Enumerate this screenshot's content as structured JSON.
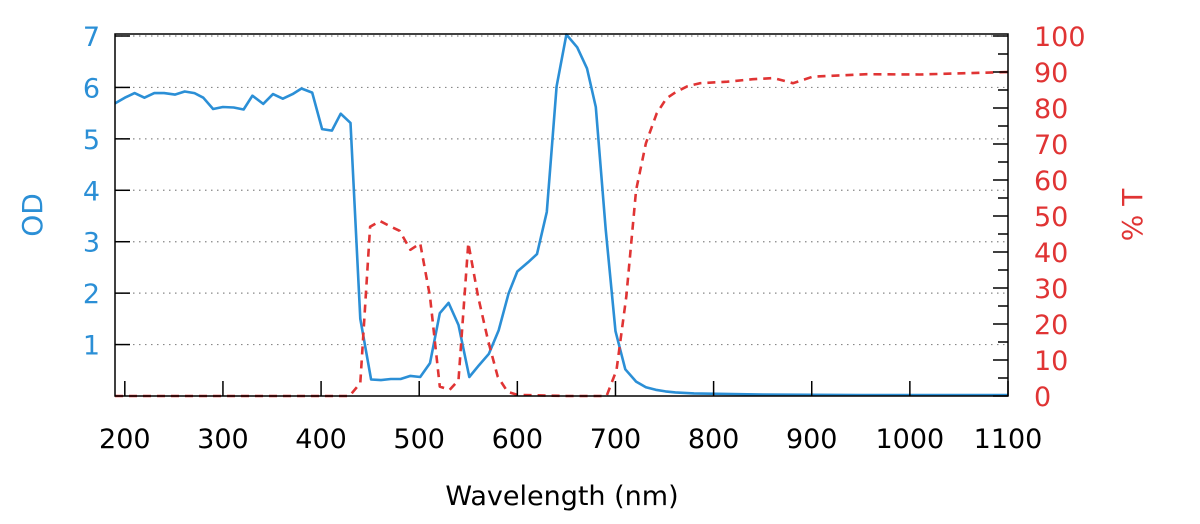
{
  "chart_data": {
    "type": "line",
    "title": "",
    "xlabel": "Wavelength (nm)",
    "ylabel": "OD",
    "y2label": "% T",
    "xlim": [
      190,
      1100
    ],
    "ylim": [
      0,
      7
    ],
    "y2lim": [
      0,
      100
    ],
    "xticks": [
      200,
      300,
      400,
      500,
      600,
      700,
      800,
      900,
      1000,
      1100
    ],
    "yticks": [
      1,
      2,
      3,
      4,
      5,
      6,
      7
    ],
    "y2ticks": [
      0,
      10,
      20,
      30,
      40,
      50,
      60,
      70,
      80,
      90,
      100
    ],
    "grid": "horizontal dotted at OD ticks",
    "colors": {
      "od": "#2b8fd6",
      "transmission": "#e03434",
      "axis": "#000000",
      "grid": "#888888"
    },
    "series": [
      {
        "axis": "left",
        "style": "solid",
        "x": [
          190,
          200,
          210,
          220,
          230,
          240,
          251,
          261,
          271,
          280,
          290,
          300,
          311,
          321,
          330,
          341,
          351,
          361,
          371,
          380,
          391,
          401,
          411,
          420,
          430,
          440,
          451,
          461,
          471,
          481,
          491,
          501,
          511,
          521,
          530,
          540,
          551,
          561,
          571,
          581,
          591,
          600,
          611,
          620,
          630,
          640,
          650,
          661,
          671,
          680,
          690,
          700,
          710,
          721,
          731,
          741,
          751,
          761,
          780,
          850,
          950,
          1050,
          1100
        ],
        "y": [
          5.69,
          5.8,
          5.89,
          5.8,
          5.89,
          5.89,
          5.86,
          5.92,
          5.89,
          5.8,
          5.58,
          5.62,
          5.61,
          5.57,
          5.84,
          5.68,
          5.87,
          5.78,
          5.87,
          5.98,
          5.9,
          5.19,
          5.16,
          5.49,
          5.31,
          1.5,
          0.32,
          0.31,
          0.33,
          0.33,
          0.39,
          0.37,
          0.64,
          1.61,
          1.81,
          1.38,
          0.37,
          0.6,
          0.82,
          1.28,
          1.99,
          2.42,
          2.6,
          2.76,
          3.58,
          6.02,
          7.03,
          6.78,
          6.37,
          5.62,
          3.24,
          1.26,
          0.52,
          0.28,
          0.17,
          0.12,
          0.09,
          0.07,
          0.05,
          0.03,
          0.02,
          0.02,
          0.02
        ]
      },
      {
        "axis": "right",
        "style": "dashed",
        "x": [
          190,
          429,
          440,
          450,
          460,
          470,
          480,
          491,
          501,
          511,
          521,
          531,
          540,
          550,
          560,
          570,
          580,
          590,
          600,
          650,
          691,
          701,
          711,
          721,
          731,
          742,
          752,
          762,
          773,
          786,
          814,
          840,
          861,
          881,
          901,
          956,
          1010,
          1100
        ],
        "y": [
          0,
          0,
          3.6,
          47.0,
          48.6,
          47.2,
          45.9,
          40.6,
          42.4,
          27.6,
          2.6,
          1.7,
          4.4,
          42.5,
          27.6,
          15.6,
          5.4,
          1.2,
          0.3,
          0,
          0,
          7.2,
          27.6,
          57.2,
          70.2,
          78.5,
          82.7,
          84.5,
          86.0,
          86.9,
          87.3,
          88.0,
          88.3,
          86.9,
          88.7,
          89.4,
          89.3,
          90.0
        ]
      }
    ]
  }
}
